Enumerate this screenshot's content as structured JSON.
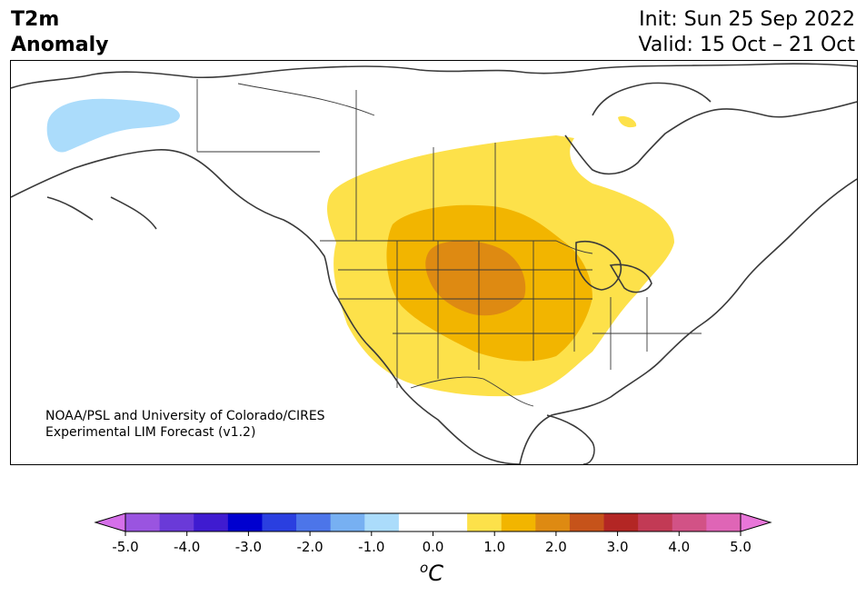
{
  "title": {
    "line1": "T2m",
    "line2": "Anomaly",
    "init": "Init: Sun 25 Sep 2022",
    "valid": "Valid: 15 Oct – 21 Oct"
  },
  "credit": {
    "line1": "NOAA/PSL and University of Colorado/CIRES",
    "line2": "Experimental LIM Forecast (v1.2)"
  },
  "map": {
    "region": "North America",
    "variable": "T2m",
    "anomaly_colors": {
      "warm_0_5_1_0": "#fde14a",
      "warm_1_0_1_5": "#f2b500",
      "warm_1_5_2_0": "#de8a12",
      "cold_m1_0_m0_5": "#abdcfb"
    }
  },
  "colorbar": {
    "unit_base": "C",
    "unit_sup": "o",
    "ticks": [
      "-5.0",
      "-4.0",
      "-3.0",
      "-2.0",
      "-1.0",
      "0.0",
      "1.0",
      "2.0",
      "3.0",
      "4.0",
      "5.0"
    ],
    "low_extend_color": "#d56fe9",
    "high_extend_color": "#e876d9",
    "colors": [
      "#9a54e0",
      "#6a3ad8",
      "#3f1bd0",
      "#0000cf",
      "#2a3fe0",
      "#4c75e9",
      "#77b0f2",
      "#abdcfb",
      "#ffffff",
      "#ffffff",
      "#fde14a",
      "#f2b500",
      "#de8a12",
      "#c6531a",
      "#b32624",
      "#c23a55",
      "#d25286",
      "#df65b6"
    ]
  }
}
